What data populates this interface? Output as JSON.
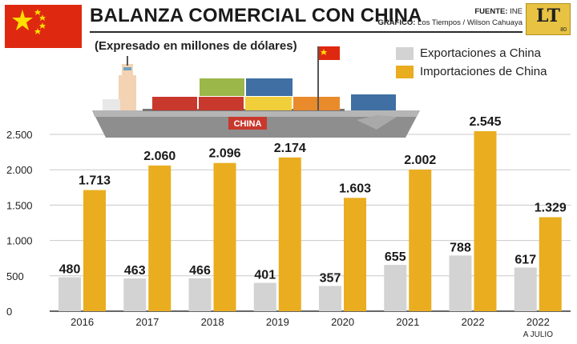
{
  "header": {
    "title": "BALANZA COMERCIAL CON CHINA",
    "subtitle": "(Expresado en millones de dólares)",
    "source_label": "FUENTE:",
    "source_value": "INE",
    "graphic_label": "GRÁFICO:",
    "graphic_value": "Los Tiempos / Wilson Cahuaya",
    "logo_text": "LT",
    "logo_number": "80"
  },
  "ship": {
    "hull_label": "CHINA"
  },
  "colors": {
    "exports": "#d3d3d3",
    "imports": "#e9ad1f",
    "flag_red": "#de2910",
    "flag_star": "#ffde00"
  },
  "chart_data": {
    "type": "bar",
    "title": "BALANZA COMERCIAL CON CHINA",
    "subtitle": "(Expresado en millones de dólares)",
    "categories": [
      "2016",
      "2017",
      "2018",
      "2019",
      "2020",
      "2021",
      "2022",
      "2022"
    ],
    "category_notes": [
      "",
      "",
      "",
      "",
      "",
      "",
      "",
      "A JULIO"
    ],
    "series": [
      {
        "name": "Exportaciones a China",
        "values": [
          480,
          463,
          466,
          401,
          357,
          655,
          788,
          617
        ],
        "labels": [
          "480",
          "463",
          "466",
          "401",
          "357",
          "655",
          "788",
          "617"
        ]
      },
      {
        "name": "Importaciones de China",
        "values": [
          1713,
          2060,
          2096,
          2174,
          1603,
          2002,
          2545,
          1329
        ],
        "labels": [
          "1.713",
          "2.060",
          "2.096",
          "2.174",
          "1.603",
          "2.002",
          "2.545",
          "1.329"
        ]
      }
    ],
    "ylim": [
      0,
      2500
    ],
    "yticks": [
      0,
      500,
      1000,
      1500,
      2000,
      2500
    ],
    "ytick_labels": [
      "0",
      "500",
      "1.000",
      "1.500",
      "2.000",
      "2.500"
    ],
    "grid": true,
    "legend_position": "top-right"
  }
}
